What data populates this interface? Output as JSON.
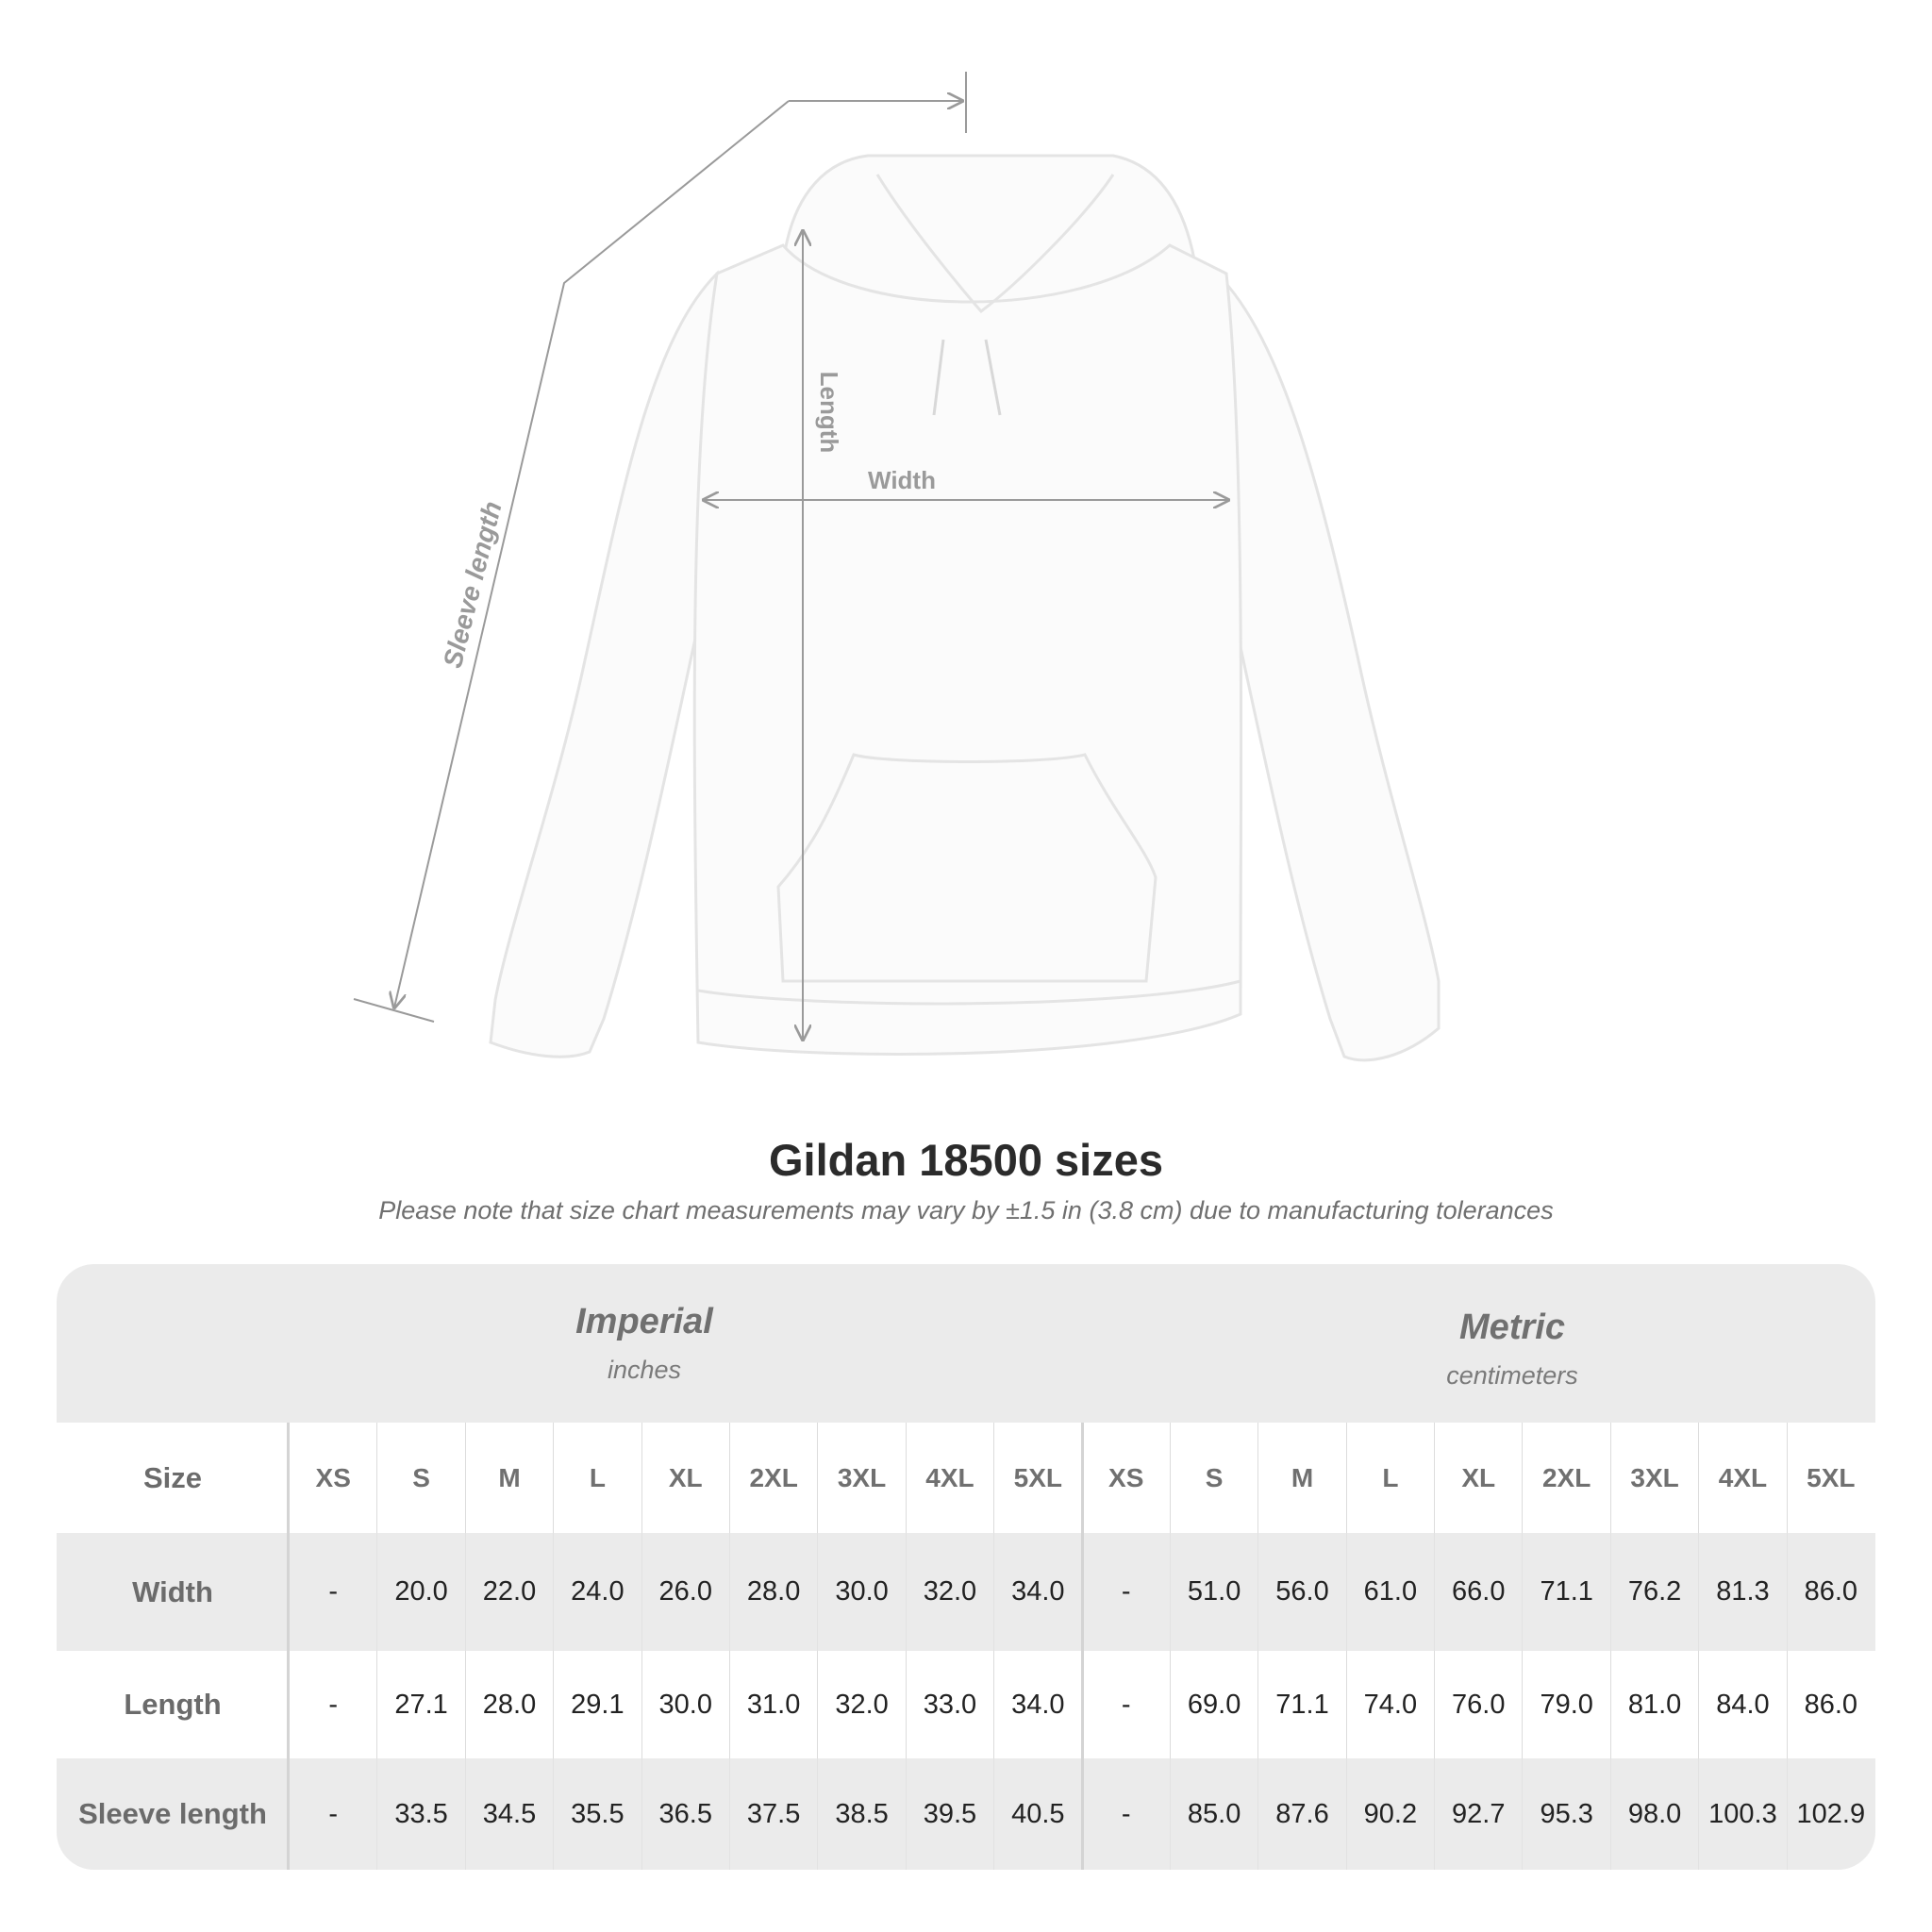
{
  "diagram": {
    "labels": {
      "length": "Length",
      "width": "Width",
      "sleeve": "Sleeve length"
    },
    "line_color": "#9a9a9a"
  },
  "title": "Gildan 18500 sizes",
  "note": "Please note that size chart measurements may vary by ±1.5 in (3.8 cm) due to manufacturing tolerances",
  "table": {
    "imperial": {
      "name": "Imperial",
      "unit": "inches"
    },
    "metric": {
      "name": "Metric",
      "unit": "centimeters"
    },
    "size_label": "Size",
    "sizes": [
      "XS",
      "S",
      "M",
      "L",
      "XL",
      "2XL",
      "3XL",
      "4XL",
      "5XL"
    ],
    "rows": [
      {
        "label": "Width",
        "imperial": [
          "-",
          "20.0",
          "22.0",
          "24.0",
          "26.0",
          "28.0",
          "30.0",
          "32.0",
          "34.0"
        ],
        "metric": [
          "-",
          "51.0",
          "56.0",
          "61.0",
          "66.0",
          "71.1",
          "76.2",
          "81.3",
          "86.0"
        ]
      },
      {
        "label": "Length",
        "imperial": [
          "-",
          "27.1",
          "28.0",
          "29.1",
          "30.0",
          "31.0",
          "32.0",
          "33.0",
          "34.0"
        ],
        "metric": [
          "-",
          "69.0",
          "71.1",
          "74.0",
          "76.0",
          "79.0",
          "81.0",
          "84.0",
          "86.0"
        ]
      },
      {
        "label": "Sleeve length",
        "imperial": [
          "-",
          "33.5",
          "34.5",
          "35.5",
          "36.5",
          "37.5",
          "38.5",
          "39.5",
          "40.5"
        ],
        "metric": [
          "-",
          "85.0",
          "87.6",
          "90.2",
          "92.7",
          "95.3",
          "98.0",
          "100.3",
          "102.9"
        ]
      }
    ]
  }
}
